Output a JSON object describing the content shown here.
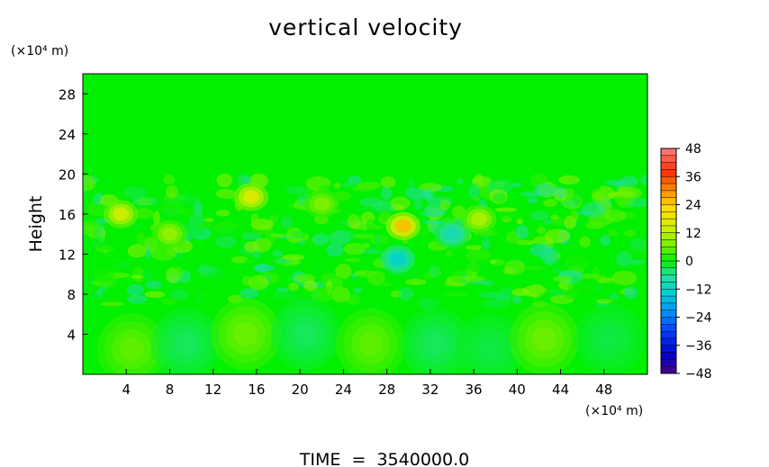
{
  "chart_data": {
    "type": "heatmap",
    "title": "vertical velocity",
    "ylabel": "Height",
    "y_unit_label": "(×10⁴ m)",
    "x_unit_label": "(×10⁴ m)",
    "xlim": [
      0,
      52
    ],
    "ylim": [
      0,
      30
    ],
    "x_ticks": [
      "4",
      "8",
      "12",
      "16",
      "20",
      "24",
      "28",
      "32",
      "36",
      "40",
      "44",
      "48"
    ],
    "x_tick_values": [
      4,
      8,
      12,
      16,
      20,
      24,
      28,
      32,
      36,
      40,
      44,
      48
    ],
    "y_ticks": [
      "4",
      "8",
      "12",
      "16",
      "20",
      "24",
      "28"
    ],
    "y_tick_values": [
      4,
      8,
      12,
      16,
      20,
      24,
      28
    ],
    "colorbar": {
      "range": [
        -48,
        48
      ],
      "tick_labels": [
        "48",
        "36",
        "24",
        "12",
        "0",
        "−12",
        "−24",
        "−36",
        "−48"
      ],
      "tick_values": [
        48,
        36,
        24,
        12,
        0,
        -12,
        -24,
        -36,
        -48
      ]
    },
    "features": {
      "lower_cells": [
        {
          "x": 4.5,
          "y": 2.5,
          "value": 6
        },
        {
          "x": 9.5,
          "y": 3.0,
          "value": -4
        },
        {
          "x": 15.0,
          "y": 4.0,
          "value": 7
        },
        {
          "x": 20.5,
          "y": 4.0,
          "value": -4
        },
        {
          "x": 26.5,
          "y": 3.0,
          "value": 6
        },
        {
          "x": 32.5,
          "y": 3.0,
          "value": -4
        },
        {
          "x": 37.5,
          "y": 2.5,
          "value": -3
        },
        {
          "x": 42.5,
          "y": 3.5,
          "value": 7
        },
        {
          "x": 48.5,
          "y": 3.5,
          "value": -3
        }
      ],
      "upper_hotspots": [
        {
          "x": 29.5,
          "y": 14.8,
          "value": 26
        },
        {
          "x": 15.5,
          "y": 17.7,
          "value": 18
        },
        {
          "x": 3.5,
          "y": 16.0,
          "value": 16
        },
        {
          "x": 29.0,
          "y": 11.5,
          "value": -14
        },
        {
          "x": 34.0,
          "y": 14.0,
          "value": -10
        },
        {
          "x": 36.5,
          "y": 15.5,
          "value": 12
        },
        {
          "x": 8.0,
          "y": 14.0,
          "value": 10
        },
        {
          "x": 22.0,
          "y": 17.0,
          "value": 8
        }
      ]
    }
  },
  "footer": {
    "time_label": "TIME  =  3540000.0"
  }
}
